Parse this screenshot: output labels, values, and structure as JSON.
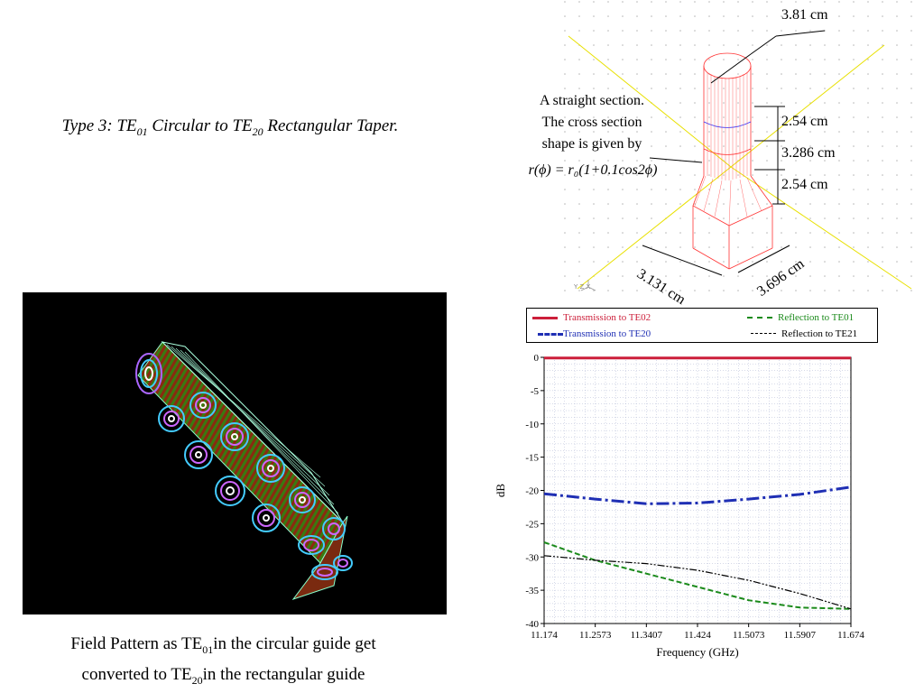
{
  "slide_title": {
    "prefix": "Type 3: TE",
    "sub1": "01",
    "middle": " Circular to TE",
    "sub2": "20",
    "suffix": " Rectangular Taper."
  },
  "caption": {
    "line1_prefix": "Field Pattern as TE",
    "line1_sub": "01",
    "line1_suffix": "in the circular guide get",
    "line2_prefix": "converted to TE",
    "line2_sub": "20",
    "line2_suffix": "in the rectangular guide"
  },
  "annotation": {
    "line1": "A straight section.",
    "line2": "The cross section",
    "line3": "shape is given by",
    "formula": "r(ϕ) = r₀(1+0.1cos2ϕ)"
  },
  "dimensions": {
    "diameter": "3.81 cm",
    "d1": "2.54 cm",
    "d2": "3.286 cm",
    "d3": "2.54 cm",
    "width_a": "3.131 cm",
    "width_b": "3.696 cm"
  },
  "axis_triad": {
    "x": "X",
    "y": "Y",
    "z": "Z"
  },
  "colors": {
    "te02": "#cc1f3a",
    "te20": "#1f2fb4",
    "te01": "#1a8a1a",
    "te21": "#000000",
    "wire": "#ff3333",
    "grid": "#9aa3c8"
  },
  "chart_data": {
    "type": "line",
    "xlabel": "Frequency (GHz)",
    "ylabel": "dB",
    "xlim": [
      11.174,
      11.674
    ],
    "ylim": [
      -40,
      0
    ],
    "xticks": [
      "11.174",
      "11.2573",
      "11.3407",
      "11.424",
      "11.5073",
      "11.5907",
      "11.674"
    ],
    "yticks": [
      "0",
      "-5",
      "-10",
      "-15",
      "-20",
      "-25",
      "-30",
      "-35",
      "-40"
    ],
    "grid": true,
    "legend_position": "top",
    "series": [
      {
        "name": "Transmission to TE02",
        "color": "#cc1f3a",
        "style": "solid",
        "x": [
          11.174,
          11.2573,
          11.3407,
          11.424,
          11.5073,
          11.5907,
          11.674
        ],
        "y": [
          -0.1,
          -0.1,
          -0.1,
          -0.1,
          -0.1,
          -0.1,
          -0.1
        ]
      },
      {
        "name": "Transmission to TE20",
        "color": "#1f2fb4",
        "style": "dashdot",
        "x": [
          11.174,
          11.2573,
          11.3407,
          11.424,
          11.5073,
          11.5907,
          11.674
        ],
        "y": [
          -20.5,
          -21.3,
          -22.0,
          -21.9,
          -21.3,
          -20.6,
          -19.5
        ]
      },
      {
        "name": "Reflection to TE01",
        "color": "#1a8a1a",
        "style": "dashed",
        "x": [
          11.174,
          11.2573,
          11.3407,
          11.424,
          11.5073,
          11.5907,
          11.674
        ],
        "y": [
          -27.8,
          -30.5,
          -32.5,
          -34.5,
          -36.5,
          -37.6,
          -37.8
        ]
      },
      {
        "name": "Reflection to TE21",
        "color": "#000000",
        "style": "dashdotdot",
        "x": [
          11.174,
          11.2573,
          11.3407,
          11.424,
          11.5073,
          11.5907,
          11.674
        ],
        "y": [
          -29.8,
          -30.5,
          -31.0,
          -32.0,
          -33.5,
          -35.5,
          -37.8
        ]
      }
    ]
  }
}
